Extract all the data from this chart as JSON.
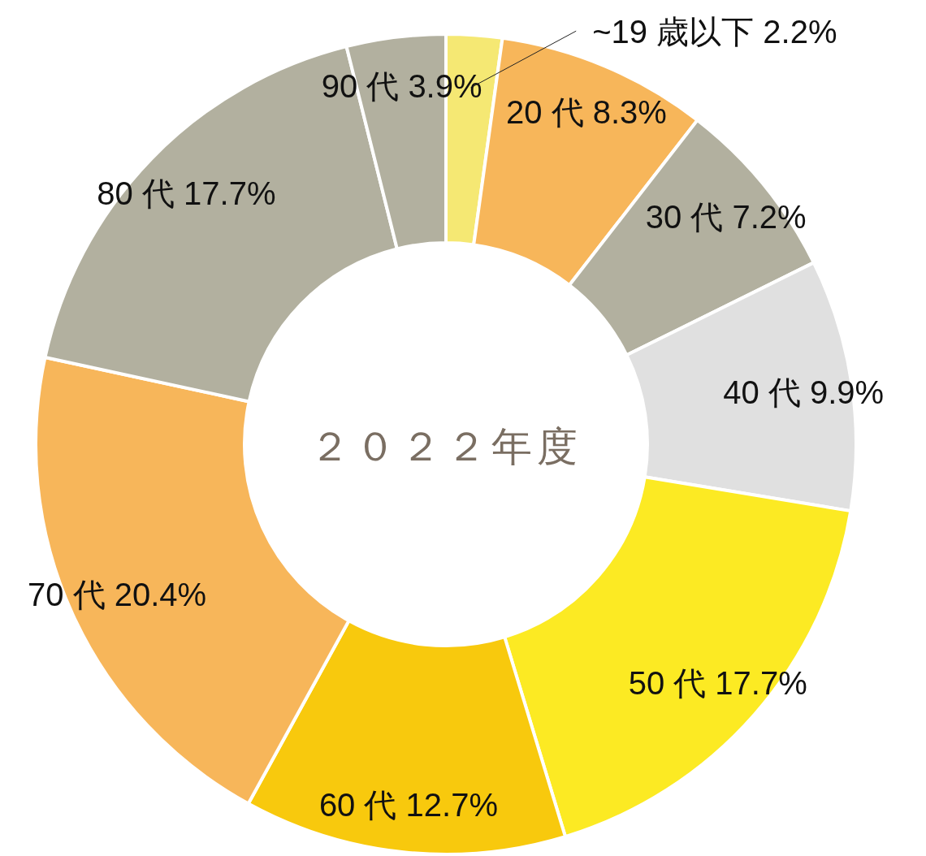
{
  "chart_data": {
    "type": "donut",
    "title": "２０２２年度",
    "categories": [
      "~19 歳以下",
      "20 代",
      "30 代",
      "40 代",
      "50 代",
      "60 代",
      "70 代",
      "80 代",
      "90 代"
    ],
    "values": [
      2.2,
      8.3,
      7.2,
      9.9,
      17.7,
      12.7,
      20.4,
      17.7,
      3.9
    ],
    "value_labels": [
      "2.2%",
      "8.3%",
      "7.2%",
      "9.9%",
      "17.7%",
      "12.7%",
      "20.4%",
      "17.7%",
      "3.9%"
    ],
    "colors": [
      "#f5e873",
      "#f7b65a",
      "#b2b09f",
      "#e0e0e0",
      "#fcea23",
      "#f8c90d",
      "#f7b65a",
      "#b2b09f",
      "#b2b09f"
    ]
  }
}
